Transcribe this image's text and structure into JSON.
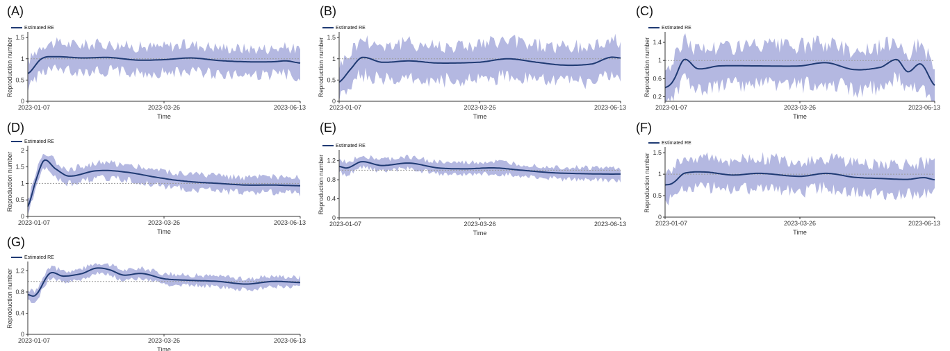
{
  "colors": {
    "line": "#1f3a73",
    "band": "#a7acdc",
    "reference": "#9a9a9a",
    "axis": "#333333"
  },
  "chart_data": [
    {
      "panel": "(A)",
      "type": "line",
      "series": [
        {
          "name": "Estimated RE"
        }
      ],
      "legend": "top-left",
      "grid": false,
      "reference_line": 1,
      "xlabel": "Time",
      "ylabel": "Reproduction number",
      "xticks": [
        "2023-01-07",
        "2023-03-26",
        "2023-06-13"
      ],
      "ylim": [
        0,
        1.6
      ],
      "yticks": [
        "0",
        "0.5",
        "1",
        "1.5"
      ],
      "ytick_values": [
        0,
        0.5,
        1,
        1.5
      ],
      "x": [
        0,
        0.05,
        0.1,
        0.2,
        0.3,
        0.4,
        0.5,
        0.6,
        0.7,
        0.8,
        0.9,
        0.95,
        1
      ],
      "y": [
        0.65,
        1.0,
        1.05,
        1.02,
        1.03,
        0.97,
        0.98,
        1.02,
        0.96,
        0.93,
        0.93,
        0.95,
        0.9
      ],
      "band_width": 0.38
    },
    {
      "panel": "(B)",
      "type": "line",
      "series": [
        {
          "name": "Estimated RE"
        }
      ],
      "legend": "top-left",
      "grid": false,
      "reference_line": 1,
      "xlabel": "Time",
      "ylabel": "Reproduction number",
      "xticks": [
        "2023-01-07",
        "2023-03-26",
        "2023-06-13"
      ],
      "ylim": [
        0,
        1.6
      ],
      "yticks": [
        "0",
        "0.5",
        "1",
        "1.5"
      ],
      "ytick_values": [
        0,
        0.5,
        1,
        1.5
      ],
      "x": [
        0,
        0.04,
        0.08,
        0.15,
        0.25,
        0.35,
        0.5,
        0.6,
        0.7,
        0.8,
        0.9,
        0.96,
        1
      ],
      "y": [
        0.45,
        0.75,
        1.03,
        0.92,
        0.95,
        0.9,
        0.92,
        1.0,
        0.92,
        0.85,
        0.88,
        1.03,
        1.02
      ],
      "band_width": 0.5
    },
    {
      "panel": "(C)",
      "type": "line",
      "series": [
        {
          "name": "Estimated RE"
        }
      ],
      "legend": "top-left",
      "grid": false,
      "reference_line": 1,
      "xlabel": "Time",
      "ylabel": "Reproduction number",
      "xticks": [
        "2023-01-07",
        "2023-03-26",
        "2023-06-13"
      ],
      "ylim": [
        0.1,
        1.6
      ],
      "yticks": [
        "0.2",
        "0.6",
        "1",
        "1.4"
      ],
      "ytick_values": [
        0.2,
        0.6,
        1,
        1.4
      ],
      "x": [
        0,
        0.03,
        0.07,
        0.12,
        0.2,
        0.35,
        0.5,
        0.6,
        0.7,
        0.8,
        0.86,
        0.9,
        0.95,
        1
      ],
      "y": [
        0.4,
        0.55,
        1.02,
        0.82,
        0.88,
        0.88,
        0.88,
        0.95,
        0.8,
        0.85,
        1.02,
        0.75,
        0.92,
        0.45
      ],
      "band_width": 0.52
    },
    {
      "panel": "(D)",
      "type": "line",
      "series": [
        {
          "name": "Estimated RE"
        }
      ],
      "legend": "top-left",
      "grid": false,
      "reference_line": 1,
      "xlabel": "Time",
      "ylabel": "Reproduction number",
      "xticks": [
        "2023-01-07",
        "2023-03-26",
        "2023-06-13"
      ],
      "ylim": [
        0,
        2.1
      ],
      "yticks": [
        "0",
        "0.5",
        "1",
        "1.5",
        "2"
      ],
      "ytick_values": [
        0,
        0.5,
        1,
        1.5,
        2
      ],
      "x": [
        0,
        0.03,
        0.06,
        0.1,
        0.15,
        0.25,
        0.35,
        0.5,
        0.6,
        0.7,
        0.8,
        0.9,
        1
      ],
      "y": [
        0.3,
        1.1,
        1.7,
        1.45,
        1.22,
        1.38,
        1.35,
        1.15,
        1.05,
        1.0,
        0.95,
        0.95,
        0.93
      ],
      "band_width": 0.28
    },
    {
      "panel": "(E)",
      "type": "line",
      "series": [
        {
          "name": "Estimated RE"
        }
      ],
      "legend": "top-left",
      "grid": false,
      "reference_line": 1,
      "xlabel": "Time",
      "ylabel": "Reproduction number",
      "xticks": [
        "2023-01-07",
        "2023-03-26",
        "2023-06-13"
      ],
      "ylim": [
        0,
        1.4
      ],
      "yticks": [
        "0",
        "0.4",
        "0.8",
        "1.2"
      ],
      "ytick_values": [
        0,
        0.4,
        0.8,
        1.2
      ],
      "x": [
        0,
        0.03,
        0.08,
        0.15,
        0.25,
        0.35,
        0.45,
        0.55,
        0.65,
        0.75,
        0.85,
        0.95,
        1
      ],
      "y": [
        1.08,
        1.05,
        1.18,
        1.1,
        1.15,
        1.05,
        1.03,
        1.05,
        1.0,
        0.95,
        0.93,
        0.92,
        0.92
      ],
      "band_width": 0.15
    },
    {
      "panel": "(F)",
      "type": "line",
      "series": [
        {
          "name": "Estimated RE"
        }
      ],
      "legend": "top-left",
      "grid": false,
      "reference_line": 1,
      "xlabel": "Time",
      "ylabel": "Reproduction number",
      "xticks": [
        "2023-01-07",
        "2023-03-26",
        "2023-06-13"
      ],
      "ylim": [
        0,
        1.6
      ],
      "yticks": [
        "0",
        "0.5",
        "1",
        "1.5"
      ],
      "ytick_values": [
        0,
        0.5,
        1,
        1.5
      ],
      "x": [
        0,
        0.03,
        0.07,
        0.15,
        0.25,
        0.35,
        0.5,
        0.6,
        0.7,
        0.8,
        0.9,
        0.96,
        1
      ],
      "y": [
        0.75,
        0.8,
        1.02,
        1.05,
        0.98,
        1.02,
        0.95,
        1.02,
        0.93,
        0.9,
        0.88,
        0.92,
        0.87
      ],
      "band_width": 0.42
    },
    {
      "panel": "(G)",
      "type": "line",
      "series": [
        {
          "name": "Estimated RE"
        }
      ],
      "legend": "top-left",
      "grid": false,
      "reference_line": 1,
      "xlabel": "Time",
      "ylabel": "Reproduction number",
      "xticks": [
        "2023-01-07",
        "2023-03-26",
        "2023-06-13"
      ],
      "ylim": [
        0,
        1.35
      ],
      "yticks": [
        "0",
        "0.4",
        "0.8",
        "1.2"
      ],
      "ytick_values": [
        0,
        0.4,
        0.8,
        1.2
      ],
      "x": [
        0,
        0.03,
        0.08,
        0.13,
        0.2,
        0.25,
        0.3,
        0.35,
        0.42,
        0.5,
        0.6,
        0.7,
        0.8,
        0.9,
        1
      ],
      "y": [
        0.75,
        0.75,
        1.15,
        1.1,
        1.15,
        1.25,
        1.22,
        1.12,
        1.15,
        1.05,
        1.02,
        1.0,
        0.95,
        1.0,
        0.98
      ],
      "band_width": 0.12
    }
  ]
}
